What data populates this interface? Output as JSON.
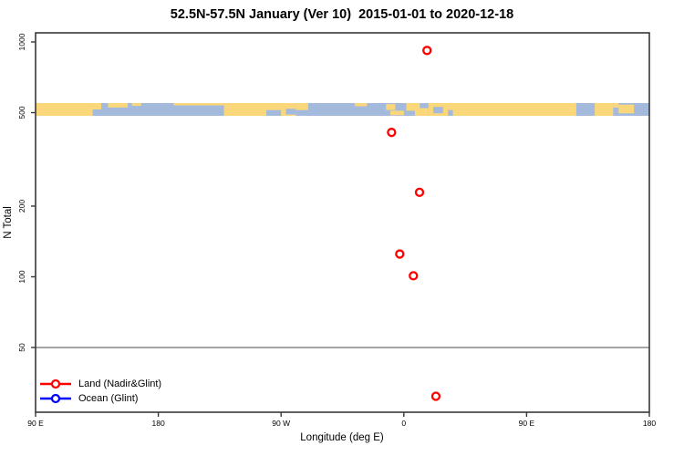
{
  "title": "52.5N-57.5N January (Ver 10)  2015-01-01 to 2020-12-18",
  "axes": {
    "x": {
      "label": "Longitude (deg E)"
    },
    "y": {
      "label": "N Total"
    }
  },
  "legend": {
    "items": [
      {
        "label": "Land (Nadir&Glint)",
        "color": "#ff0000"
      },
      {
        "label": "Ocean (Glint)",
        "color": "#0000ff"
      }
    ]
  },
  "colors": {
    "land": "#fbd77c",
    "ocean": "#a4badc",
    "series_land": "#ff0000",
    "series_ocean": "#0000ff",
    "reference_line": "#8f8f8f",
    "axis": "#383838",
    "text": "#000000"
  },
  "chart_data": {
    "type": "scatter",
    "title": "52.5N-57.5N January (Ver 10)  2015-01-01 to 2020-12-18",
    "xlabel": "Longitude (deg E)",
    "ylabel": "N Total",
    "x_axis": {
      "units": "deg E",
      "range_deg": [
        90,
        540
      ],
      "ticks": [
        {
          "value": 90,
          "label": "90 E"
        },
        {
          "value": 180,
          "label": "180"
        },
        {
          "value": 270,
          "label": "90 W"
        },
        {
          "value": 360,
          "label": "0"
        },
        {
          "value": 450,
          "label": "90 E"
        },
        {
          "value": 540,
          "label": "180"
        }
      ]
    },
    "y_axis": {
      "scale": "log",
      "range": [
        27,
        1090
      ],
      "ticks": [
        {
          "value": 1000,
          "label": "1000"
        },
        {
          "value": 500,
          "label": "500"
        },
        {
          "value": 200,
          "label": "200"
        },
        {
          "value": 100,
          "label": "100"
        },
        {
          "value": 50,
          "label": "50"
        }
      ]
    },
    "reference_line_n": 50,
    "series": [
      {
        "name": "Land (Nadir&Glint)",
        "color": "#ff0000",
        "marker": "open-circle",
        "points": [
          {
            "lon": 17,
            "n": 920
          },
          {
            "lon": -9,
            "n": 412
          },
          {
            "lon": 11.5,
            "n": 229
          },
          {
            "lon": -3,
            "n": 125
          },
          {
            "lon": 7,
            "n": 101
          },
          {
            "lon": 23.5,
            "n": 31
          }
        ]
      },
      {
        "name": "Ocean (Glint)",
        "color": "#0000ff",
        "marker": "open-circle",
        "points": []
      }
    ],
    "map_strip": {
      "latitude_band": "52.5N-57.5N",
      "n_center": 515,
      "land_color": "#fbd77c",
      "ocean_color": "#a4badc",
      "land_segments": [
        [
          0.0,
          0.093,
          0,
          1
        ],
        [
          0.093,
          0.107,
          0,
          0.5
        ],
        [
          0.118,
          0.15,
          0,
          0.35
        ],
        [
          0.157,
          0.172,
          0,
          0.22
        ],
        [
          0.225,
          0.307,
          0,
          0.18
        ],
        [
          0.307,
          0.424,
          0,
          1
        ],
        [
          0.424,
          0.444,
          0,
          0.55
        ],
        [
          0.52,
          0.54,
          0,
          0.25
        ],
        [
          0.571,
          0.586,
          0.08,
          0.55
        ],
        [
          0.578,
          0.6,
          0.6,
          0.95
        ],
        [
          0.604,
          0.626,
          0,
          0.6
        ],
        [
          0.618,
          0.64,
          0.4,
          1
        ],
        [
          0.64,
          0.881,
          0,
          1
        ],
        [
          0.911,
          0.941,
          0,
          1
        ],
        [
          0.941,
          0.95,
          0,
          0.35
        ],
        [
          0.95,
          0.975,
          0.12,
          0.8
        ]
      ],
      "ocean_notches": [
        [
          0.648,
          0.664,
          0.3,
          0.8
        ],
        [
          0.672,
          0.68,
          0.55,
          1
        ],
        [
          0.376,
          0.4,
          0.55,
          1
        ],
        [
          0.408,
          0.424,
          0.45,
          0.9
        ]
      ]
    }
  }
}
